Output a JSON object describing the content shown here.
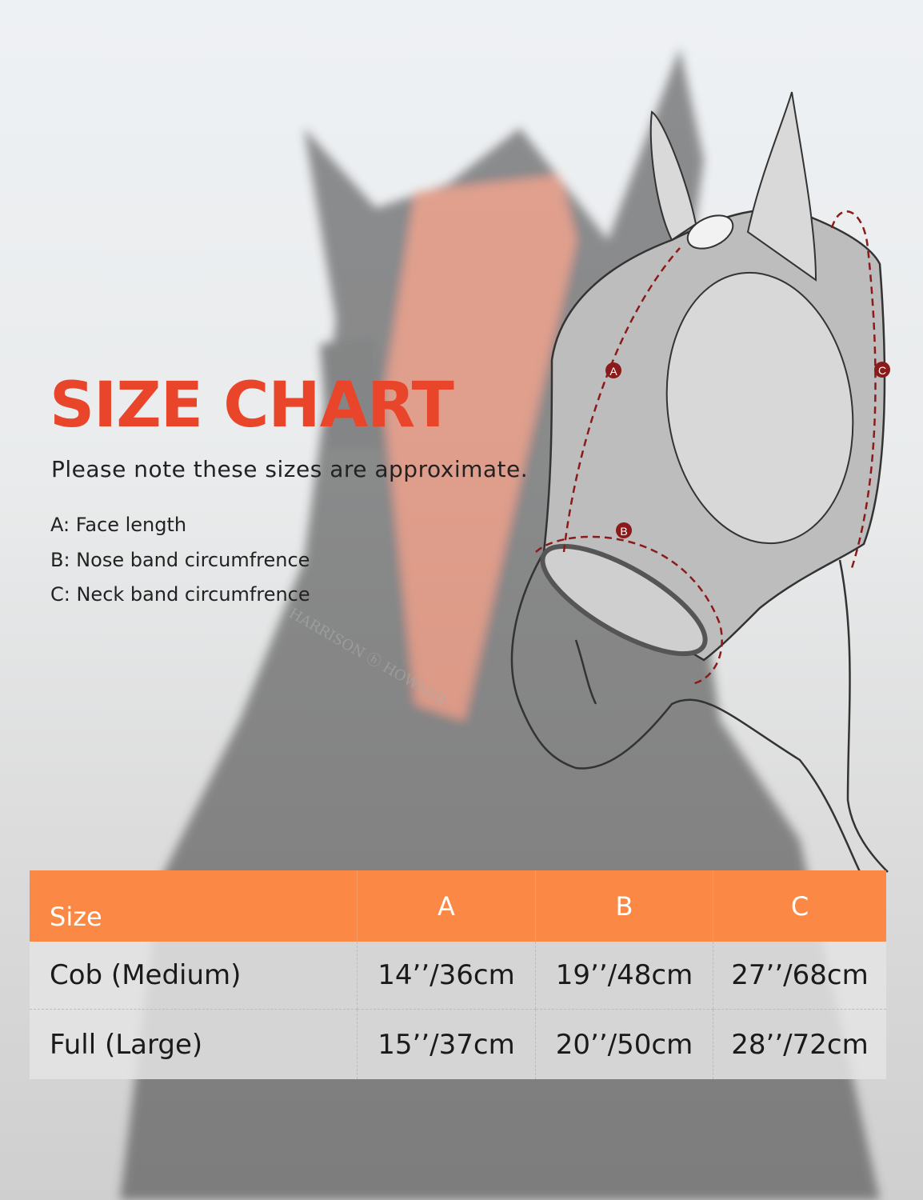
{
  "title": "SIZE CHART",
  "note": "Please note these sizes are approximate.",
  "legend": [
    {
      "key": "A",
      "text": "A: Face length"
    },
    {
      "key": "B",
      "text": "B: Nose band circumfrence"
    },
    {
      "key": "C",
      "text": "C: Neck band circumfrence"
    }
  ],
  "diagram_labels": {
    "a": "A",
    "b": "B",
    "c": "C"
  },
  "photo_text": "HARRISON ⓗ HOWARD",
  "table": {
    "headers": [
      "Size",
      "A",
      "B",
      "C"
    ],
    "rows": [
      [
        "Cob (Medium)",
        "14’’/36cm",
        "19’’/48cm",
        "27’’/68cm"
      ],
      [
        "Full (Large)",
        "15’’/37cm",
        "20’’/50cm",
        "28’’/72cm"
      ]
    ]
  },
  "colors": {
    "title": "#e8452a",
    "header": "#fb8845",
    "marker": "#8b1a1a"
  }
}
